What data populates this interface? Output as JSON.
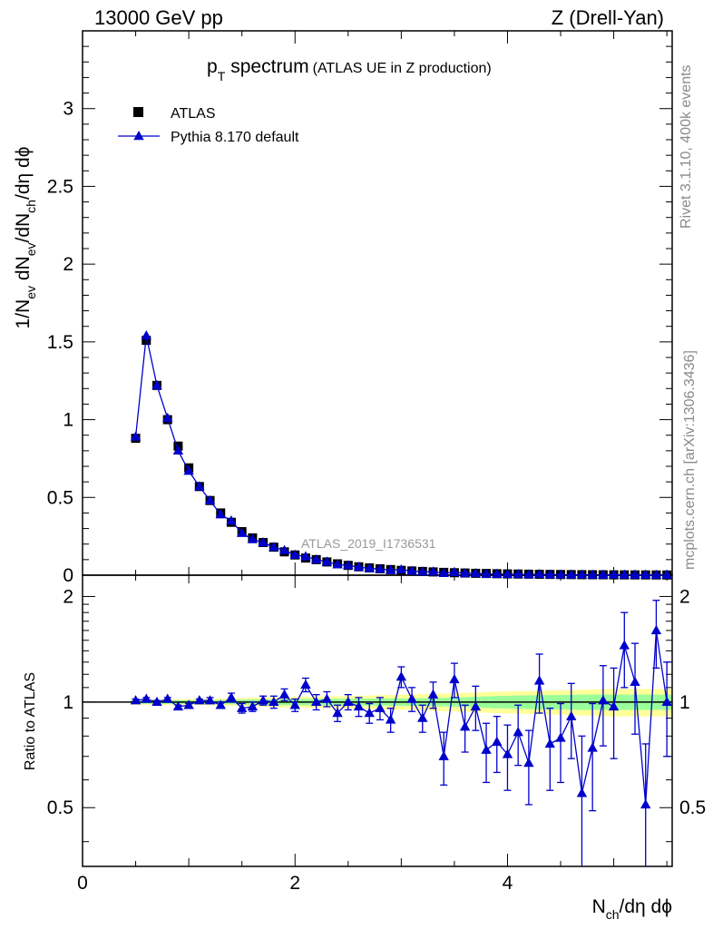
{
  "header": {
    "left": "13000 GeV pp",
    "right": "Z (Drell-Yan)"
  },
  "side_labels": {
    "rivet": "Rivet 3.1.10,  400k events",
    "mcplots": "mcplots.cern.ch [arXiv:1306.3436]"
  },
  "chart_data": [
    {
      "type": "scatter",
      "panel": "main",
      "title_main": "p",
      "title_sub": "T",
      "title_word": "spectrum",
      "title_paren": "(ATLAS UE in Z production)",
      "ylabel_parts": [
        "1/N",
        "ev",
        " dN",
        "ev",
        "/dN",
        "ch",
        "/dη dϕ"
      ],
      "xlim": [
        0,
        5.55
      ],
      "ylim": [
        0,
        3.5
      ],
      "yticks": [
        0,
        0.5,
        1,
        1.5,
        2,
        2.5,
        3
      ],
      "ytick_labels": [
        "0",
        "0.5",
        "1",
        "1.5",
        "2",
        "2.5",
        "3"
      ],
      "watermark": "ATLAS_2019_I1736531",
      "legend": [
        {
          "name": "ATLAS",
          "marker": "square",
          "color": "#000000"
        },
        {
          "name": "Pythia 8.170 default",
          "marker": "triangle",
          "color": "#0000cc"
        }
      ],
      "x": [
        0.5,
        0.6,
        0.7,
        0.8,
        0.9,
        1.0,
        1.1,
        1.2,
        1.3,
        1.4,
        1.5,
        1.6,
        1.7,
        1.8,
        1.9,
        2.0,
        2.1,
        2.2,
        2.3,
        2.4,
        2.5,
        2.6,
        2.7,
        2.8,
        2.9,
        3.0,
        3.1,
        3.2,
        3.3,
        3.4,
        3.5,
        3.6,
        3.7,
        3.8,
        3.9,
        4.0,
        4.1,
        4.2,
        4.3,
        4.4,
        4.5,
        4.6,
        4.7,
        4.8,
        4.9,
        5.0,
        5.1,
        5.2,
        5.3,
        5.4,
        5.5
      ],
      "series": [
        {
          "name": "ATLAS",
          "values": [
            0.88,
            1.51,
            1.22,
            1.0,
            0.83,
            0.69,
            0.57,
            0.48,
            0.4,
            0.34,
            0.28,
            0.24,
            0.21,
            0.18,
            0.15,
            0.13,
            0.11,
            0.1,
            0.085,
            0.073,
            0.063,
            0.054,
            0.047,
            0.041,
            0.036,
            0.031,
            0.027,
            0.024,
            0.021,
            0.018,
            0.016,
            0.014,
            0.012,
            0.011,
            0.0095,
            0.0083,
            0.0073,
            0.0064,
            0.0056,
            0.0049,
            0.0043,
            0.0038,
            0.0033,
            0.0029,
            0.0026,
            0.0023,
            0.002,
            0.0018,
            0.0016,
            0.0014,
            0.0012
          ]
        },
        {
          "name": "Pythia 8.170 default",
          "values": [
            0.89,
            1.54,
            1.22,
            1.01,
            0.8,
            0.67,
            0.57,
            0.48,
            0.39,
            0.35,
            0.27,
            0.23,
            0.21,
            0.18,
            0.16,
            0.13,
            0.12,
            0.1,
            0.086,
            0.068,
            0.063,
            0.052,
            0.044,
            0.039,
            0.032,
            0.036,
            0.027,
            0.022,
            0.022,
            0.013,
            0.019,
            0.012,
            0.012,
            0.008,
            0.007,
            0.006,
            0.006,
            0.004,
            0.006,
            0.004,
            0.003,
            0.003,
            0.003,
            0.002,
            0.002,
            0.003,
            0.002,
            0.002,
            0.002,
            0.001,
            0.002
          ]
        }
      ]
    },
    {
      "type": "scatter",
      "panel": "ratio",
      "ylabel": "Ratio to ATLAS",
      "xlabel_parts": [
        "N",
        "ch",
        "/dη dϕ"
      ],
      "xlim": [
        0,
        5.55
      ],
      "ylim": [
        0.34,
        2.3
      ],
      "yticks": [
        0.5,
        1,
        2
      ],
      "ytick_labels": [
        "0.5",
        "1",
        "2"
      ],
      "xticks": [
        0,
        2,
        4
      ],
      "xtick_labels": [
        "0",
        "2",
        "4"
      ],
      "x": [
        0.5,
        0.6,
        0.7,
        0.8,
        0.9,
        1.0,
        1.1,
        1.2,
        1.3,
        1.4,
        1.5,
        1.6,
        1.7,
        1.8,
        1.9,
        2.0,
        2.1,
        2.2,
        2.3,
        2.4,
        2.5,
        2.6,
        2.7,
        2.8,
        2.9,
        3.0,
        3.1,
        3.2,
        3.3,
        3.4,
        3.5,
        3.6,
        3.7,
        3.8,
        3.9,
        4.0,
        4.1,
        4.2,
        4.3,
        4.4,
        4.5,
        4.6,
        4.7,
        4.8,
        4.9,
        5.0,
        5.1,
        5.2,
        5.3,
        5.4,
        5.5
      ],
      "series": [
        {
          "name": "Pythia 8.170 default",
          "values": [
            1.01,
            1.02,
            1.0,
            1.02,
            0.97,
            0.98,
            1.01,
            1.01,
            0.98,
            1.03,
            0.96,
            0.97,
            1.01,
            1.0,
            1.05,
            0.98,
            1.12,
            1.0,
            1.02,
            0.93,
            1.0,
            0.97,
            0.93,
            0.96,
            0.89,
            1.18,
            1.02,
            0.9,
            1.05,
            0.7,
            1.16,
            0.85,
            0.97,
            0.73,
            0.77,
            0.71,
            0.82,
            0.67,
            1.15,
            0.76,
            0.79,
            0.91,
            0.55,
            0.74,
            1.01,
            0.97,
            1.45,
            1.14,
            0.51,
            1.6,
            1.0
          ],
          "errors": [
            0.01,
            0.01,
            0.01,
            0.01,
            0.01,
            0.01,
            0.01,
            0.02,
            0.02,
            0.03,
            0.03,
            0.03,
            0.03,
            0.04,
            0.04,
            0.04,
            0.05,
            0.05,
            0.05,
            0.05,
            0.05,
            0.06,
            0.06,
            0.07,
            0.07,
            0.08,
            0.08,
            0.08,
            0.09,
            0.12,
            0.13,
            0.13,
            0.14,
            0.14,
            0.14,
            0.15,
            0.16,
            0.16,
            0.22,
            0.2,
            0.2,
            0.22,
            0.25,
            0.25,
            0.26,
            0.28,
            0.35,
            0.33,
            0.25,
            0.35,
            0.3
          ]
        },
        {
          "name": "ATLAS uncertainty band (inner)",
          "half_width": [
            0.012,
            0.012,
            0.012,
            0.012,
            0.012,
            0.012,
            0.013,
            0.013,
            0.014,
            0.015,
            0.016,
            0.017,
            0.018,
            0.019,
            0.02,
            0.02,
            0.021,
            0.021,
            0.022,
            0.022,
            0.022,
            0.023,
            0.023,
            0.024,
            0.024,
            0.025,
            0.025,
            0.026,
            0.027,
            0.028,
            0.03,
            0.032,
            0.035,
            0.038,
            0.04,
            0.042,
            0.044,
            0.045,
            0.046,
            0.047,
            0.048,
            0.049,
            0.05,
            0.05,
            0.05,
            0.05,
            0.05,
            0.05,
            0.05,
            0.05,
            0.05
          ]
        },
        {
          "name": "ATLAS uncertainty band (outer)",
          "half_width": [
            0.018,
            0.018,
            0.018,
            0.018,
            0.018,
            0.019,
            0.02,
            0.021,
            0.022,
            0.024,
            0.026,
            0.028,
            0.03,
            0.032,
            0.034,
            0.035,
            0.036,
            0.037,
            0.038,
            0.039,
            0.04,
            0.042,
            0.044,
            0.046,
            0.048,
            0.05,
            0.052,
            0.054,
            0.056,
            0.058,
            0.06,
            0.062,
            0.065,
            0.068,
            0.07,
            0.072,
            0.074,
            0.075,
            0.076,
            0.078,
            0.08,
            0.082,
            0.084,
            0.086,
            0.088,
            0.09,
            0.09,
            0.09,
            0.09,
            0.09,
            0.09
          ]
        }
      ]
    }
  ]
}
